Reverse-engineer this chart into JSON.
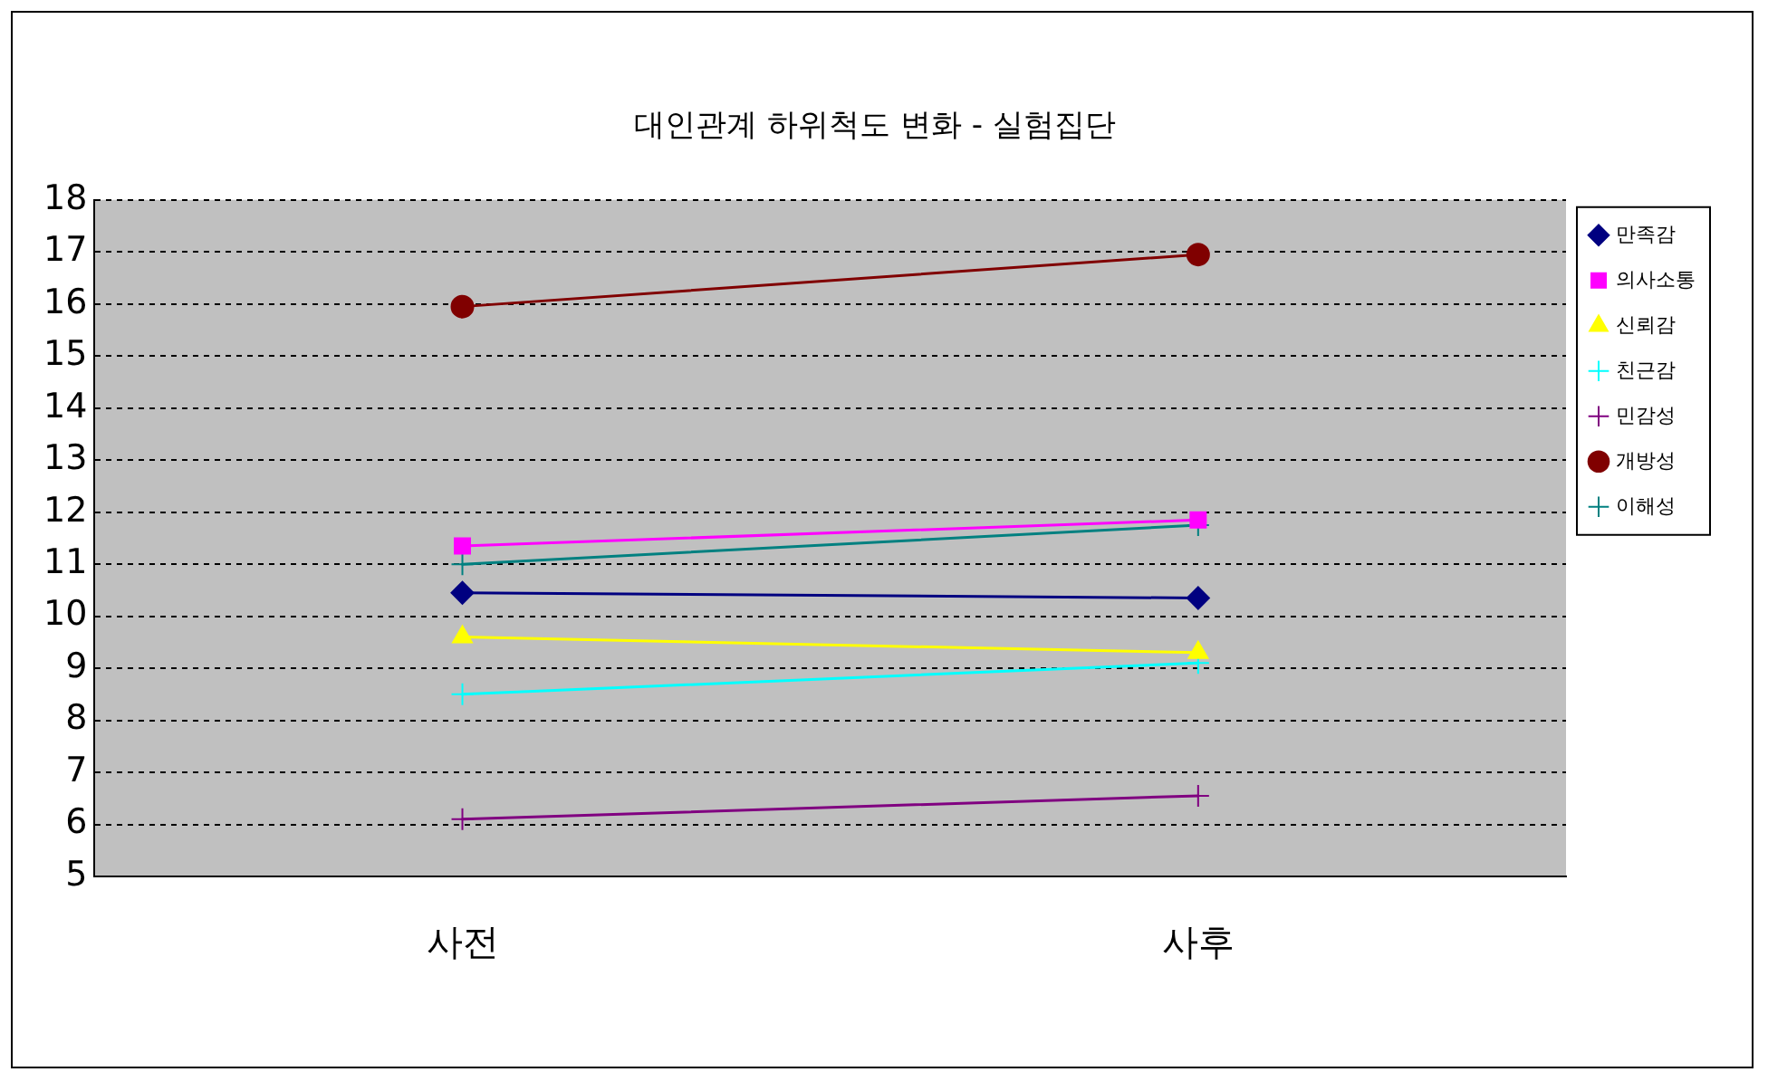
{
  "chart_data": {
    "type": "line",
    "title": "대인관계 하위척도 변화 - 실험집단",
    "categories": [
      "사전",
      "사후"
    ],
    "ylim": [
      5,
      18
    ],
    "yticks": [
      5,
      6,
      7,
      8,
      9,
      10,
      11,
      12,
      13,
      14,
      15,
      16,
      17,
      18
    ],
    "grid": "y",
    "legend": "top right",
    "line_style": "solid",
    "series": [
      {
        "name": "만족감",
        "color": "#000080",
        "marker": "diamond",
        "values": [
          10.45,
          10.35
        ]
      },
      {
        "name": "의사소통",
        "color": "#ff00ff",
        "marker": "square",
        "values": [
          11.35,
          11.85
        ]
      },
      {
        "name": "신뢰감",
        "color": "#ffff00",
        "marker": "triangle",
        "values": [
          9.6,
          9.3
        ]
      },
      {
        "name": "친근감",
        "color": "#00ffff",
        "marker": "cross",
        "values": [
          8.5,
          9.1
        ]
      },
      {
        "name": "민감성",
        "color": "#800080",
        "marker": "cross",
        "values": [
          6.1,
          6.55
        ]
      },
      {
        "name": "개방성",
        "color": "#800000",
        "marker": "circle",
        "values": [
          15.95,
          16.95
        ]
      },
      {
        "name": "이해성",
        "color": "#008080",
        "marker": "cross",
        "values": [
          11.0,
          11.75
        ]
      }
    ]
  }
}
